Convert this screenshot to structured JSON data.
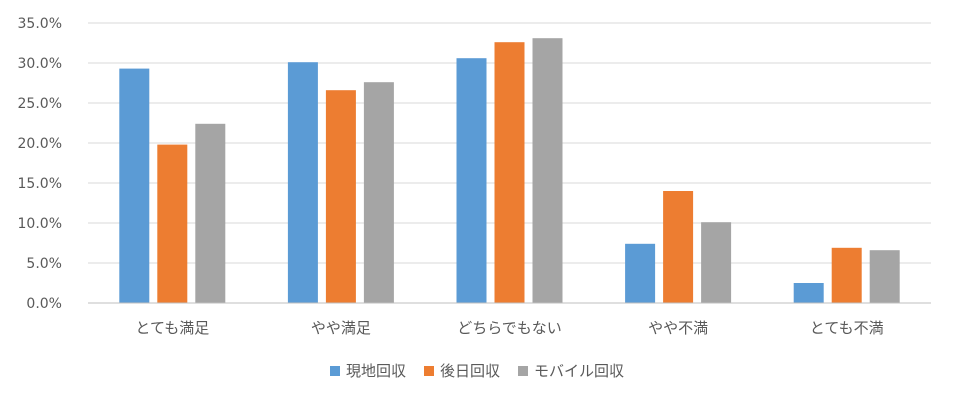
{
  "colors": {
    "series_1": "#5B9BD5",
    "series_2": "#ED7D31",
    "series_3": "#A5A5A5",
    "gridline": "#D9D9D9",
    "axis": "#BFBFBF",
    "text": "#595959"
  },
  "chart_data": {
    "type": "bar",
    "title": "",
    "xlabel": "",
    "ylabel": "",
    "ylim": [
      0,
      35
    ],
    "y_ticks": [
      "0.0%",
      "5.0%",
      "10.0%",
      "15.0%",
      "20.0%",
      "25.0%",
      "30.0%",
      "35.0%"
    ],
    "grid": true,
    "legend_position": "bottom",
    "categories": [
      "とても満足",
      "やや満足",
      "どちらでもない",
      "やや不満",
      "とても不満"
    ],
    "series": [
      {
        "name": "現地回収",
        "values": [
          29.3,
          30.1,
          30.6,
          7.4,
          2.5
        ]
      },
      {
        "name": "後日回収",
        "values": [
          19.8,
          26.6,
          32.6,
          14.0,
          6.9
        ]
      },
      {
        "name": "モバイル回収",
        "values": [
          22.4,
          27.6,
          33.1,
          10.1,
          6.6
        ]
      }
    ]
  }
}
